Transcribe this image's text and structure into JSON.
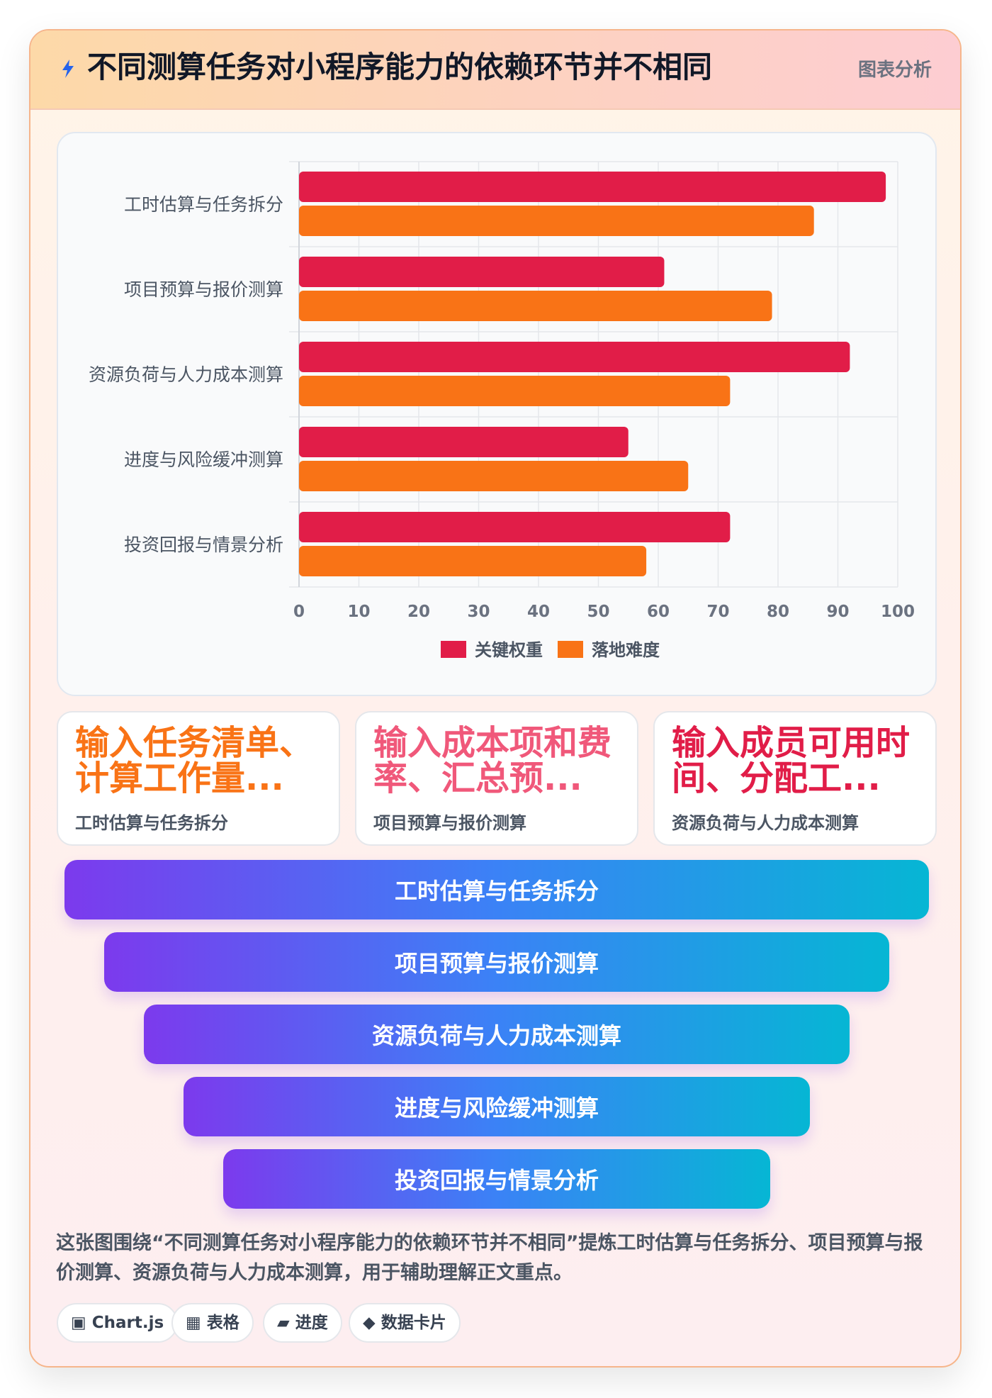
{
  "header": {
    "title": "不同测算任务对小程序能力的依赖环节并不相同",
    "tag": "图表分析"
  },
  "colors": {
    "series_primary": "#e11d48",
    "series_secondary": "#f97316",
    "stat_1": "#f97316",
    "stat_2": "#f0587a",
    "stat_3": "#e11d48"
  },
  "chart_data": {
    "type": "bar",
    "orientation": "horizontal",
    "categories": [
      "工时估算与任务拆分",
      "项目预算与报价测算",
      "资源负荷与人力成本测算",
      "进度与风险缓冲测算",
      "投资回报与情景分析"
    ],
    "series": [
      {
        "name": "关键权重",
        "values": [
          98,
          61,
          92,
          55,
          72
        ]
      },
      {
        "name": "落地难度",
        "values": [
          86,
          79,
          72,
          65,
          58
        ]
      }
    ],
    "xlim": [
      0,
      100
    ],
    "xticks": [
      0,
      10,
      20,
      30,
      40,
      50,
      60,
      70,
      80,
      90,
      100
    ],
    "grid": true,
    "legend_position": "bottom"
  },
  "stats": [
    {
      "value": "输入任务清单、计算工作量...",
      "label": "工时估算与任务拆分"
    },
    {
      "value": "输入成本项和费率、汇总预...",
      "label": "项目预算与报价测算"
    },
    {
      "value": "输入成员可用时间、分配工...",
      "label": "资源负荷与人力成本测算"
    }
  ],
  "funnel": [
    "工时估算与任务拆分",
    "项目预算与报价测算",
    "资源负荷与人力成本测算",
    "进度与风险缓冲测算",
    "投资回报与情景分析"
  ],
  "description": "这张图围绕“不同测算任务对小程序能力的依赖环节并不相同”提炼工时估算与任务拆分、项目预算与报价测算、资源负荷与人力成本测算，用于辅助理解正文重点。",
  "chips": [
    "▣ Chart.js",
    "▦ 表格",
    "▰ 进度",
    "◆ 数据卡片"
  ]
}
